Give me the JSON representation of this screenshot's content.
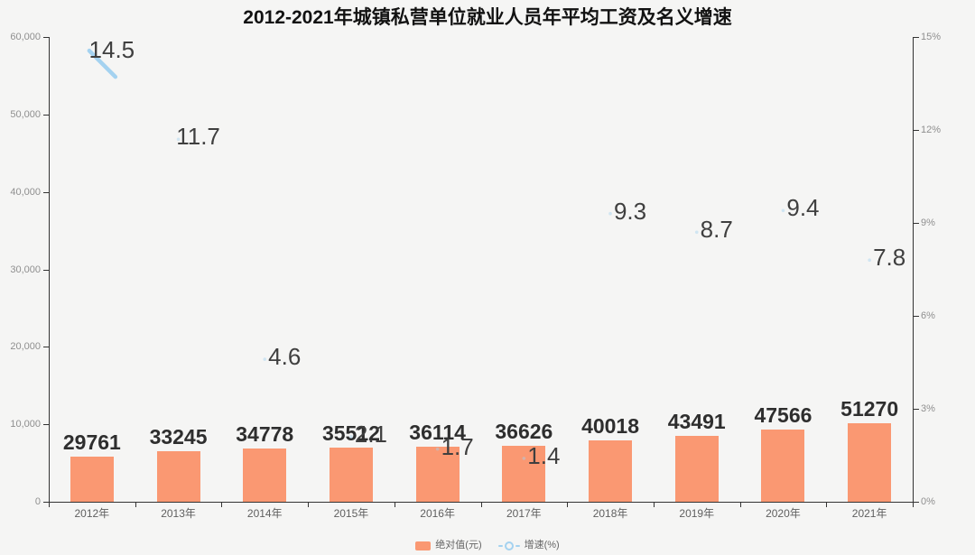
{
  "title": "2012-2021年城镇私营单位就业人员年平均工资及名义增速",
  "chart_data": {
    "type": "bar",
    "title": "2012-2021年城镇私营单位就业人员年平均工资及名义增速",
    "categories": [
      "2012年",
      "2013年",
      "2014年",
      "2015年",
      "2016年",
      "2017年",
      "2018年",
      "2019年",
      "2020年",
      "2021年"
    ],
    "series": [
      {
        "name": "绝对值(元)",
        "type": "bar",
        "color": "#fa9872",
        "values": [
          29761,
          33245,
          34778,
          35512,
          36114,
          36626,
          40018,
          43491,
          47566,
          51270
        ]
      },
      {
        "name": "增速(%)",
        "type": "line",
        "color": "#a4d2f0",
        "values": [
          14.5,
          11.7,
          4.6,
          2.1,
          1.7,
          1.4,
          9.3,
          8.7,
          9.4,
          7.8
        ]
      }
    ],
    "left_axis": {
      "ticks": [
        "60,000",
        "50,000",
        "40,000",
        "30,000",
        "20,000",
        "10,000",
        "0"
      ],
      "min": 0,
      "max": 60000
    },
    "right_axis": {
      "ticks": [
        "15%",
        "12%",
        "9%",
        "6%",
        "3%",
        "0%"
      ],
      "min": 0,
      "max": 15
    },
    "legend_position": "bottom",
    "grid": false,
    "background": "#f5f5f4",
    "label_color_bar_values": "#2e2e2e",
    "label_color_growth_values": "#3f3f3f"
  }
}
